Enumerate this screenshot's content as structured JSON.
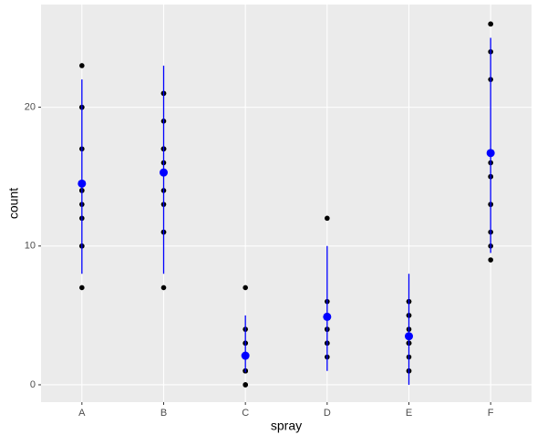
{
  "chart_data": {
    "type": "dotplot-summary",
    "x_label": "spray",
    "y_label": "count",
    "categories": [
      "A",
      "B",
      "C",
      "D",
      "E",
      "F"
    ],
    "values": [
      [
        10,
        7,
        20,
        14,
        14,
        12,
        10,
        23,
        17,
        20,
        14,
        13
      ],
      [
        11,
        17,
        21,
        11,
        16,
        14,
        17,
        17,
        19,
        21,
        7,
        13
      ],
      [
        0,
        1,
        7,
        2,
        3,
        1,
        2,
        1,
        3,
        0,
        1,
        4
      ],
      [
        3,
        5,
        12,
        6,
        4,
        3,
        5,
        5,
        5,
        5,
        2,
        4
      ],
      [
        3,
        5,
        3,
        5,
        3,
        6,
        1,
        1,
        3,
        2,
        6,
        4
      ],
      [
        11,
        9,
        15,
        22,
        15,
        16,
        13,
        10,
        26,
        26,
        24,
        13
      ]
    ],
    "means": [
      14.5,
      15.3,
      2.1,
      4.9,
      3.5,
      16.7
    ],
    "lower": [
      8,
      8,
      0.9,
      1,
      0,
      9.5
    ],
    "upper": [
      22,
      23,
      5,
      10,
      8,
      25
    ],
    "point_color": "#000000",
    "summary_color": "#0000ff",
    "ylim": [
      -1.25,
      27.4
    ],
    "yticks": [
      0,
      10,
      20
    ],
    "grid": true
  }
}
